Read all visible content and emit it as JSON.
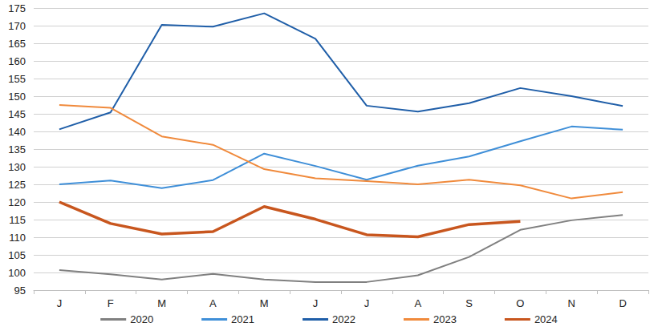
{
  "chart_data": {
    "type": "line",
    "categories": [
      "J",
      "F",
      "M",
      "A",
      "M",
      "J",
      "J",
      "A",
      "S",
      "O",
      "N",
      "D"
    ],
    "series": [
      {
        "name": "2020",
        "color": "#808080",
        "line_style": "solid",
        "values": [
          100.7,
          99.5,
          98,
          99.6,
          98,
          97.3,
          97.3,
          99.2,
          104.4,
          112.1,
          114.8,
          116.3
        ]
      },
      {
        "name": "2021",
        "color": "#3f8fd8",
        "line_style": "solid",
        "values": [
          125,
          126.1,
          123.9,
          126.2,
          133.7,
          130.2,
          126.3,
          130.3,
          132.9,
          137.2,
          141.4,
          140.5
        ]
      },
      {
        "name": "2022",
        "color": "#1f5ea8",
        "line_style": "solid",
        "values": [
          140.6,
          145.4,
          170.2,
          169.7,
          173.5,
          166.3,
          147.3,
          145.6,
          148,
          152.3,
          150,
          147.2
        ]
      },
      {
        "name": "2023",
        "color": "#f08a3c",
        "line_style": "solid",
        "values": [
          147.5,
          146.7,
          138.6,
          136.2,
          129.3,
          126.7,
          125.9,
          125,
          126.3,
          124.7,
          121,
          122.8
        ]
      },
      {
        "name": "2024",
        "color": "#c8561e",
        "line_style": "thick",
        "values": [
          120,
          113.9,
          110.9,
          111.6,
          118.7,
          115.1,
          110.7,
          110.1,
          113.6,
          114.5,
          null,
          null
        ]
      }
    ],
    "ylim": [
      95,
      175
    ],
    "yticks": [
      95,
      100,
      105,
      110,
      115,
      120,
      125,
      130,
      135,
      140,
      145,
      150,
      155,
      160,
      165,
      170,
      175
    ],
    "grid": true,
    "legend": "bottom"
  }
}
